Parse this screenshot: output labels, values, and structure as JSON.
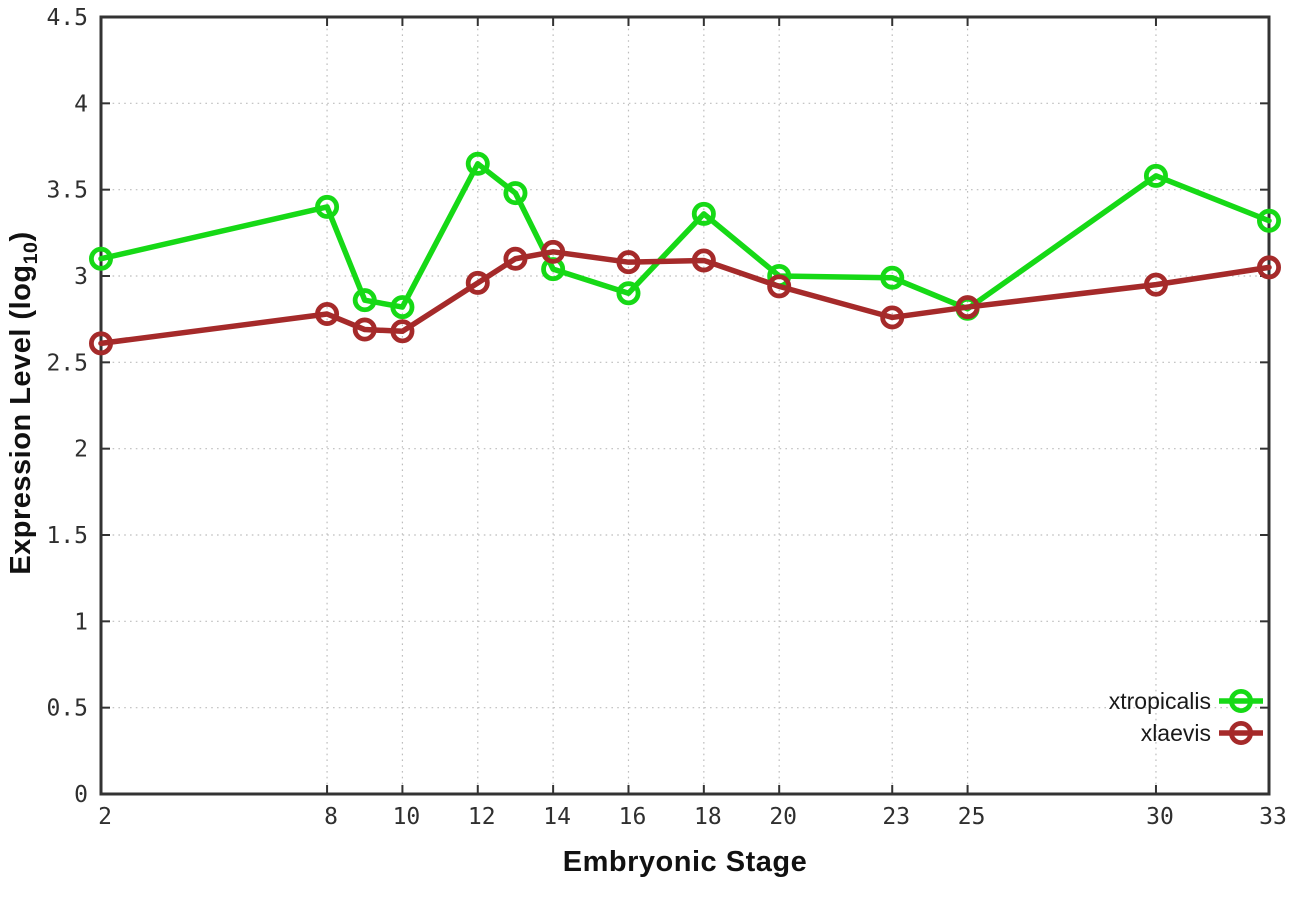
{
  "figure": {
    "background": "#ffffff",
    "border_color": "#333333",
    "grid_color": "#bdbdbd",
    "tick_label_color": "#2f2f2f",
    "ylabel_main": "Expression Level (log",
    "ylabel_sub": "10",
    "ylabel_close": ")"
  },
  "chart_data": {
    "type": "line",
    "title": "",
    "xlabel": "Embryonic Stage",
    "ylabel": "Expression Level (log10)",
    "xlim": [
      2,
      33
    ],
    "ylim": [
      0,
      4.5
    ],
    "grid": true,
    "legend_position": "bottom-right",
    "x": [
      2,
      8,
      9,
      10,
      12,
      13,
      14,
      16,
      18,
      20,
      23,
      25,
      30,
      33
    ],
    "x_ticks": [
      2,
      8,
      10,
      12,
      14,
      16,
      18,
      20,
      23,
      25,
      30,
      33
    ],
    "x_tick_labels": [
      "2",
      "8",
      "10",
      "12",
      "14",
      "16",
      "18",
      "20",
      "23",
      "25",
      "30",
      "33"
    ],
    "y_ticks": [
      0,
      0.5,
      1,
      1.5,
      2,
      2.5,
      3,
      3.5,
      4,
      4.5
    ],
    "y_tick_labels": [
      "0",
      "0.5",
      "1",
      "1.5",
      "2",
      "2.5",
      "3",
      "3.5",
      "4",
      "4.5"
    ],
    "series": [
      {
        "name": "xtropicalis",
        "color": "#16d916",
        "marker": "open-circle",
        "values": [
          3.1,
          3.4,
          2.86,
          2.82,
          3.65,
          3.48,
          3.04,
          2.9,
          3.36,
          3.0,
          2.99,
          2.81,
          3.58,
          3.32
        ]
      },
      {
        "name": "xlaevis",
        "color": "#a52a2a",
        "marker": "open-circle",
        "values": [
          2.61,
          2.78,
          2.69,
          2.68,
          2.96,
          3.1,
          3.14,
          3.08,
          3.09,
          2.94,
          2.76,
          2.82,
          2.95,
          3.05
        ]
      }
    ]
  }
}
